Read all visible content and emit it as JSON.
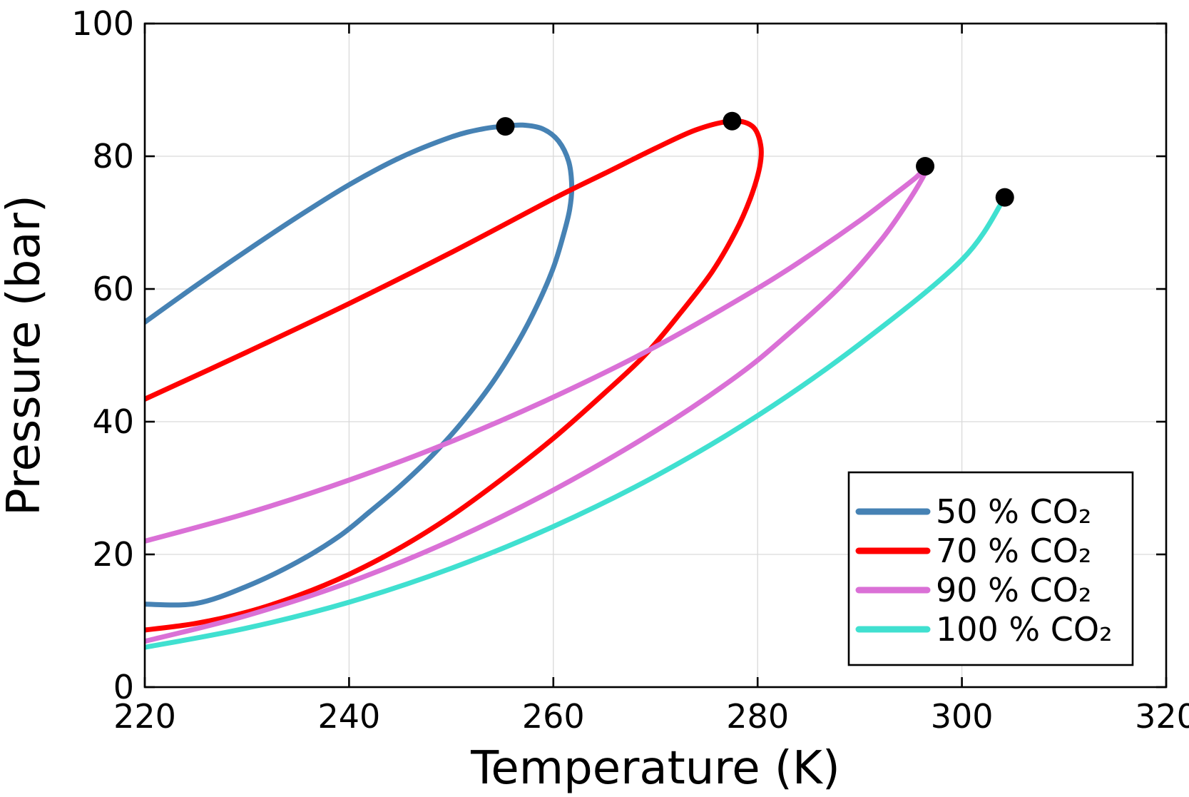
{
  "chart_data": {
    "type": "line",
    "xlabel": "Temperature (K)",
    "ylabel": "Pressure (bar)",
    "xlim": [
      220,
      320
    ],
    "ylim": [
      0,
      100
    ],
    "x_ticks": [
      220,
      240,
      260,
      280,
      300,
      320
    ],
    "y_ticks": [
      0,
      20,
      40,
      60,
      80,
      100
    ],
    "grid": true,
    "legend_position": "bottom-right",
    "series": [
      {
        "name": "50 % CO₂",
        "color": "#4682b4",
        "x": [
          220,
          225,
          230,
          235,
          240,
          245,
          250,
          253,
          255,
          257,
          259,
          260.5,
          261.5,
          261.8,
          261.6,
          261,
          260,
          258.5,
          256.5,
          254,
          251,
          248,
          245,
          242,
          239,
          235,
          230,
          225,
          220
        ],
        "y": [
          55,
          60.5,
          65.8,
          70.9,
          75.7,
          79.8,
          82.9,
          84.1,
          84.5,
          84.7,
          84.1,
          82.3,
          79.2,
          75.5,
          72,
          68.2,
          63.2,
          57.8,
          51.9,
          45.8,
          39.8,
          34.7,
          30.3,
          26.4,
          22.7,
          18.9,
          15.2,
          12.6,
          12.5
        ],
        "critical_point": [
          255.3,
          84.5
        ]
      },
      {
        "name": "70 % CO₂",
        "color": "#ff0000",
        "x": [
          220,
          230,
          240,
          250,
          260,
          265,
          270,
          274,
          277.5,
          279.5,
          280.3,
          280.2,
          279.3,
          277.8,
          275.5,
          272.5,
          269,
          265,
          260,
          255,
          250,
          245,
          240,
          235,
          230,
          225,
          220
        ],
        "y": [
          43.4,
          50.5,
          57.8,
          65.5,
          73.6,
          77.4,
          81.2,
          84,
          85.3,
          84.5,
          81.7,
          78.4,
          73.7,
          68.5,
          62.5,
          56.5,
          50.1,
          44.3,
          37.5,
          31.4,
          25.8,
          21,
          17,
          13.8,
          11.3,
          9.6,
          8.6
        ],
        "critical_point": [
          277.5,
          85.3
        ]
      },
      {
        "name": "90 % CO₂",
        "color": "#da70d6",
        "x": [
          220,
          230,
          240,
          250,
          260,
          270,
          280,
          285,
          290,
          293,
          295.5,
          296.5,
          296.2,
          294.5,
          292,
          288,
          283,
          278,
          270,
          260,
          250,
          240,
          230,
          220
        ],
        "y": [
          22,
          26.2,
          31.2,
          37,
          43.7,
          51.3,
          60.1,
          65,
          70.3,
          73.8,
          76.8,
          78.4,
          76.9,
          72.6,
          67.2,
          60.2,
          53.2,
          46.9,
          38.6,
          29.7,
          22.1,
          15.8,
          10.8,
          6.9
        ],
        "critical_point": [
          296.4,
          78.5
        ]
      },
      {
        "name": "100 % CO₂",
        "color": "#40e0d0",
        "x": [
          220,
          230,
          240,
          250,
          260,
          270,
          280,
          290,
          300,
          304.2
        ],
        "y": [
          6,
          8.9,
          12.8,
          17.9,
          24.2,
          31.8,
          40.9,
          51.7,
          64.4,
          73.8
        ],
        "critical_point": [
          304.2,
          73.8
        ]
      }
    ]
  }
}
